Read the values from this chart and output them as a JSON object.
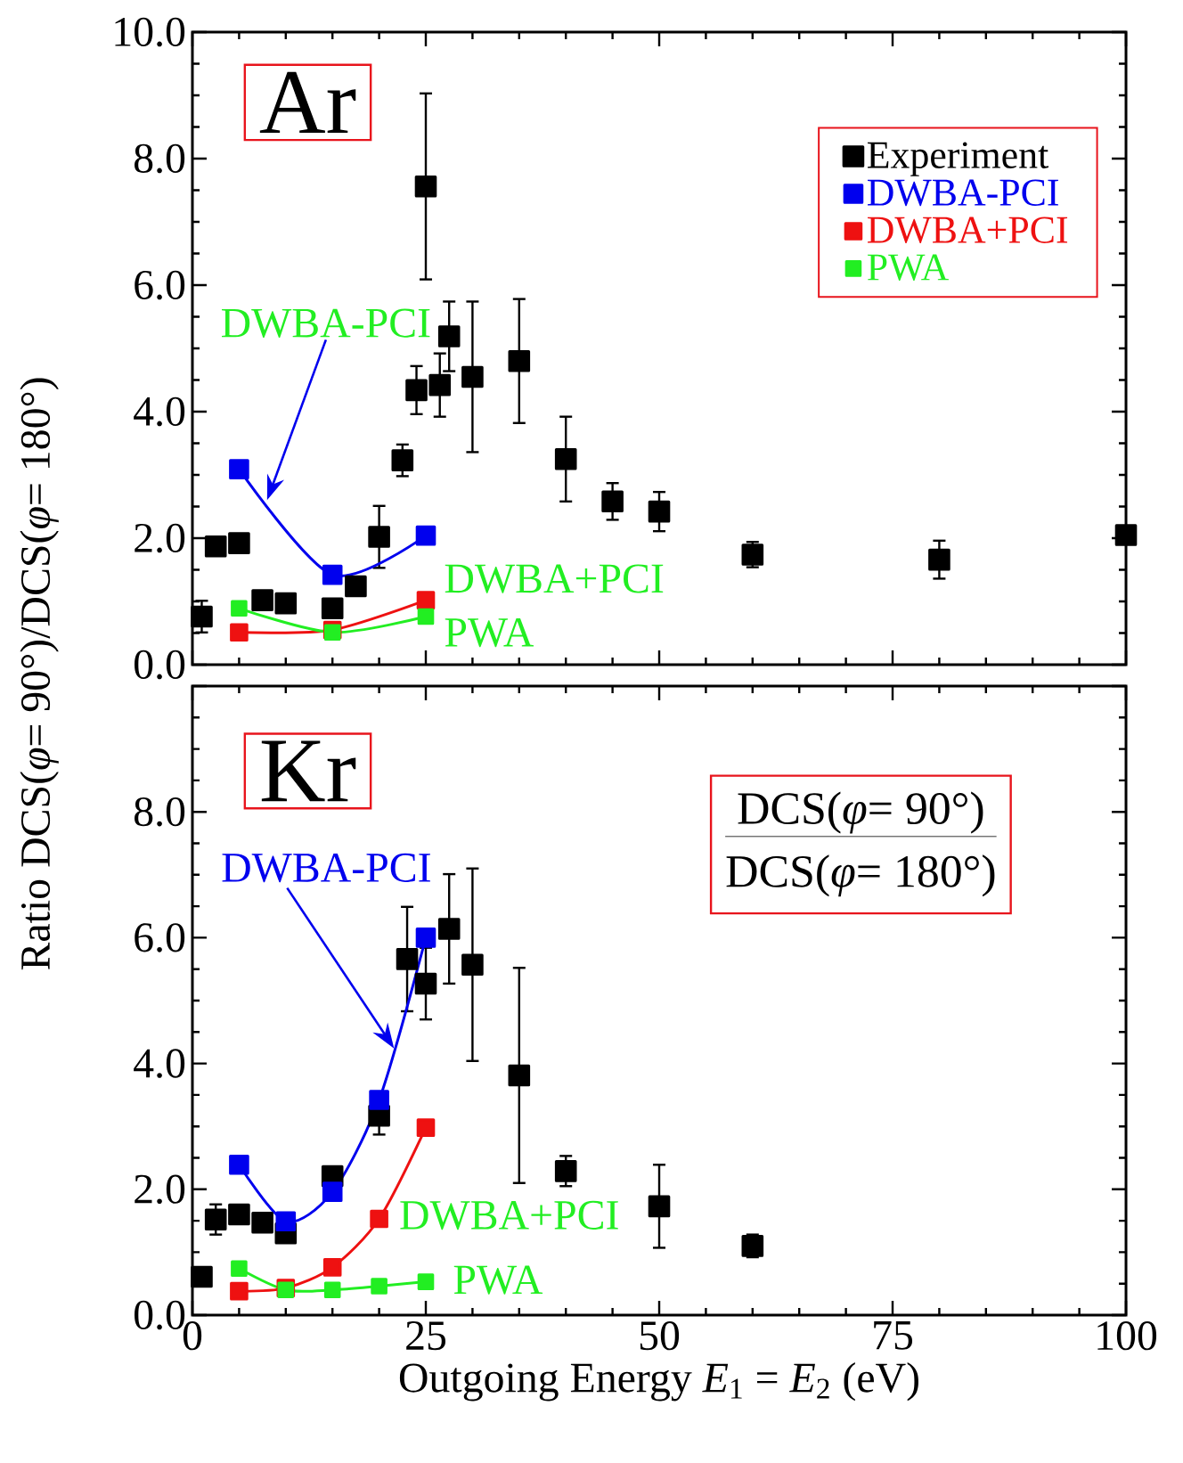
{
  "chart_data": [
    {
      "type": "line",
      "marker": "square",
      "legend": "top right",
      "tick_labels": "y",
      "ylabel": "Ratio DCS(*φ*= 90°)/DCS(*φ*= 180°)",
      "xlim": [
        0,
        100
      ],
      "xticks": [
        0,
        25,
        50,
        75,
        100
      ],
      "ylim": [
        0,
        10
      ],
      "yticks": [
        {
          "value": 0,
          "label": "0.0"
        },
        {
          "value": 2,
          "label": "2.0"
        },
        {
          "value": 4,
          "label": "4.0"
        },
        {
          "value": 6,
          "label": "6.0"
        },
        {
          "value": 8,
          "label": "8.0"
        },
        {
          "value": 10,
          "label": "10.0"
        }
      ],
      "annotations": [
        "Ar",
        {
          "text": "DWBA-PCI",
          "x": 8,
          "y": 2.6
        },
        {
          "text": "DWBA+PCI",
          "x": 25,
          "y": 1.02
        },
        {
          "text": "PWA",
          "x": 25,
          "y": 0.76
        }
      ],
      "series": [
        {
          "name": "Experiment",
          "type": "scatter",
          "color": "#000000",
          "x": [
            1,
            2.5,
            5,
            7.5,
            10,
            15,
            17.5,
            20,
            22.5,
            24,
            25,
            26.5,
            27.5,
            30,
            35,
            40,
            45,
            50,
            60,
            80,
            100
          ],
          "values": [
            0.76,
            1.87,
            1.92,
            1.02,
            0.97,
            0.89,
            1.24,
            2.02,
            3.23,
            4.34,
            7.56,
            4.42,
            5.19,
            4.55,
            4.8,
            3.25,
            2.58,
            2.42,
            1.74,
            1.66,
            2.05
          ],
          "errors": [
            0.25,
            null,
            null,
            null,
            null,
            null,
            null,
            0.49,
            0.25,
            0.38,
            1.47,
            0.5,
            0.55,
            1.19,
            0.98,
            0.67,
            0.29,
            0.31,
            0.2,
            0.3,
            null
          ]
        },
        {
          "name": "DWBA-PCI",
          "color": "#0000ee",
          "x": [
            5,
            15,
            25
          ],
          "values": [
            3.09,
            1.42,
            2.04
          ]
        },
        {
          "name": "DWBA+PCI",
          "color": "#ee1111",
          "x": [
            5,
            15,
            25
          ],
          "values": [
            0.51,
            0.55,
            1.02
          ]
        },
        {
          "name": "PWA",
          "color": "#22ee22",
          "x": [
            5,
            15,
            25
          ],
          "values": [
            0.89,
            0.51,
            0.76
          ]
        }
      ]
    },
    {
      "type": "line",
      "marker": "square",
      "xlabel": "Outgoing Energy *E*$_{1}$ = *E*$_{2}$ (eV)",
      "xlim": [
        0,
        100
      ],
      "xticks": [
        0,
        25,
        50,
        75,
        100
      ],
      "ylim": [
        0,
        10
      ],
      "yticks": [
        {
          "value": 0,
          "label": "0.0"
        },
        {
          "value": 2,
          "label": "2.0"
        },
        {
          "value": 4,
          "label": "4.0"
        },
        {
          "value": 6,
          "label": "6.0"
        },
        {
          "value": 8,
          "label": "8.0"
        },
        {
          "value": 10,
          "label": null
        }
      ],
      "annotations": [
        "Kr",
        {
          "text": "DWBA-PCI",
          "x": 21.6,
          "y": 4.24
        },
        {
          "text": "DWBA+PCI",
          "x": 20,
          "y": 1.53
        },
        {
          "text": "PWA",
          "x": 25,
          "y": 0.53
        },
        "DCS(*φ*= 90°)",
        "DCS(*φ*= 180°)"
      ],
      "series": [
        {
          "type": "scatter",
          "color": "#000000",
          "x": [
            1,
            2.5,
            5,
            7.5,
            10,
            15,
            20,
            23,
            25,
            27.5,
            30,
            35,
            40,
            50,
            60
          ],
          "values": [
            0.61,
            1.52,
            1.6,
            1.47,
            1.3,
            2.21,
            3.17,
            5.66,
            5.27,
            6.14,
            5.57,
            3.81,
            2.29,
            1.73,
            1.1
          ],
          "errors": [
            null,
            0.24,
            null,
            null,
            null,
            null,
            0.3,
            0.83,
            0.57,
            0.87,
            1.53,
            1.71,
            0.24,
            0.66,
            0.18
          ]
        },
        {
          "color": "#0000ee",
          "x": [
            5,
            10,
            15,
            20,
            25
          ],
          "values": [
            2.39,
            1.49,
            1.96,
            3.42,
            6.0
          ]
        },
        {
          "color": "#ee1111",
          "x": [
            5,
            10,
            15,
            20,
            25
          ],
          "values": [
            0.38,
            0.43,
            0.76,
            1.53,
            2.98
          ]
        },
        {
          "color": "#22ee22",
          "x": [
            5,
            10,
            15,
            20,
            25
          ],
          "values": [
            0.74,
            0.4,
            0.4,
            0.46,
            0.53
          ]
        }
      ]
    }
  ]
}
